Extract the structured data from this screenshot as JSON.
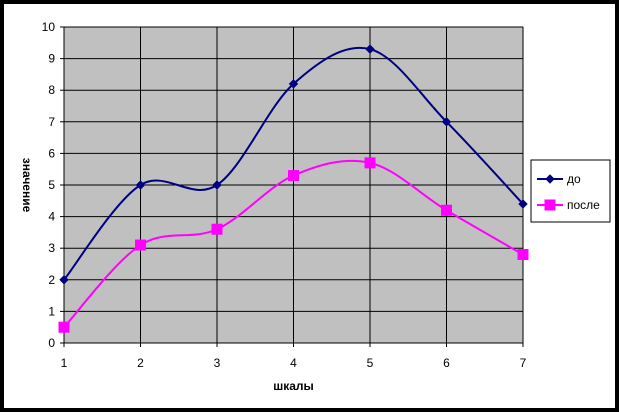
{
  "chart_data": {
    "type": "line",
    "title": "",
    "xlabel": "шкалы",
    "ylabel": "значение",
    "x": [
      1,
      2,
      3,
      4,
      5,
      6,
      7
    ],
    "xlim": [
      1,
      7
    ],
    "ylim": [
      0,
      10
    ],
    "x_ticks": [
      "1",
      "2",
      "3",
      "4",
      "5",
      "6",
      "7"
    ],
    "y_ticks": [
      "0",
      "1",
      "2",
      "3",
      "4",
      "5",
      "6",
      "7",
      "8",
      "9",
      "10"
    ],
    "grid": true,
    "smoothed": true,
    "legend_position": "right",
    "series": [
      {
        "name": "до",
        "values": [
          2.0,
          5.0,
          5.0,
          8.2,
          9.3,
          7.0,
          4.4
        ],
        "color": "#000080",
        "marker": "diamond"
      },
      {
        "name": "после",
        "values": [
          0.5,
          3.1,
          3.6,
          5.3,
          5.7,
          4.2,
          2.8
        ],
        "color": "#ff00ff",
        "marker": "square"
      }
    ],
    "colors": {
      "background": "#000000",
      "plot_area": "#c0c0c0",
      "gridlines": "#000000"
    }
  }
}
